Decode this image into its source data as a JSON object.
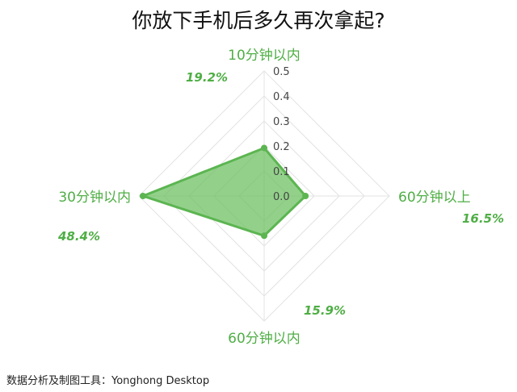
{
  "chart_data": {
    "type": "radar",
    "title": "你放下手机后多久再次拿起?",
    "categories": [
      "10分钟以内",
      "60分钟以上",
      "60分钟以内",
      "30分钟以内"
    ],
    "values": [
      0.192,
      0.165,
      0.159,
      0.484
    ],
    "value_labels": [
      "19.2%",
      "16.5%",
      "15.9%",
      "48.4%"
    ],
    "radial_ticks": [
      "0.0",
      "0.1",
      "0.2",
      "0.3",
      "0.4",
      "0.5"
    ],
    "radial_range": [
      0,
      0.5
    ],
    "grid": true,
    "legend": "none",
    "colors": {
      "fill": "#6abf5e",
      "stroke": "#5cb551",
      "label": "#4fae45",
      "grid": "#e3e3e3",
      "tick": "#444444"
    }
  },
  "footer": {
    "credit": "数据分析及制图工具：Yonghong Desktop"
  }
}
